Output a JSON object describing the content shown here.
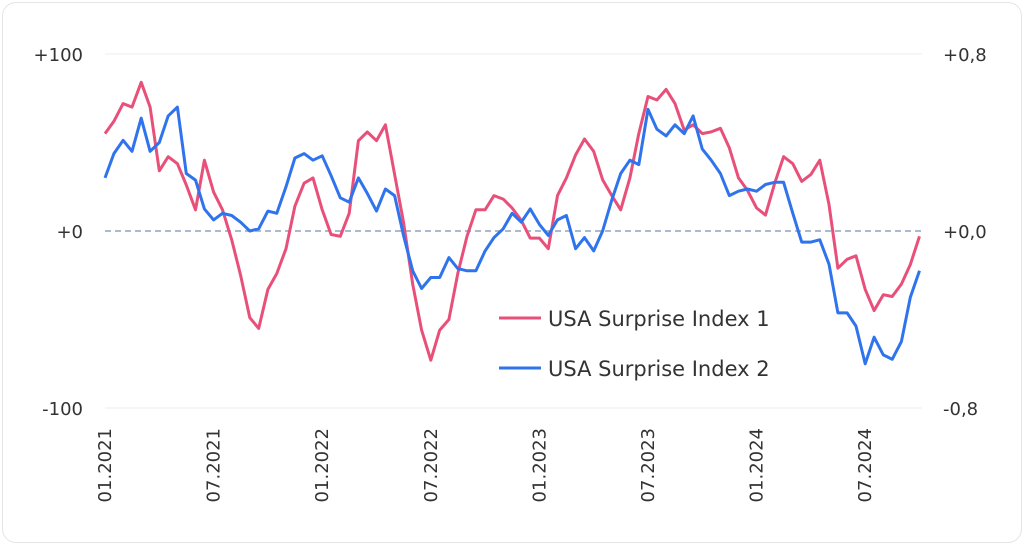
{
  "chart_data": {
    "type": "line",
    "title": "",
    "xlabel": "",
    "ylabel_left": "",
    "ylabel_right": "",
    "x_tick_labels": [
      "01.2021",
      "07.2021",
      "01.2022",
      "07.2022",
      "01.2023",
      "07.2023",
      "01.2024",
      "07.2024"
    ],
    "y_left_tick_labels": [
      "+100",
      "+0",
      "-100"
    ],
    "y_right_tick_labels": [
      "+0,8",
      "+0,0",
      "-0,8"
    ],
    "ylim_left": [
      -100,
      100
    ],
    "ylim_right": [
      -0.8,
      0.8
    ],
    "zero_line": "dashed",
    "grid": "horizontal",
    "legend_position": "bottom-center",
    "x": [
      "2021-01-01",
      "2021-01-16",
      "2021-02-01",
      "2021-02-16",
      "2021-03-01",
      "2021-03-16",
      "2021-04-01",
      "2021-04-16",
      "2021-05-01",
      "2021-05-16",
      "2021-06-01",
      "2021-06-16",
      "2021-07-01",
      "2021-07-16",
      "2021-08-01",
      "2021-08-16",
      "2021-09-01",
      "2021-09-16",
      "2021-10-01",
      "2021-10-16",
      "2021-11-01",
      "2021-11-16",
      "2021-12-01",
      "2021-12-16",
      "2022-01-01",
      "2022-01-16",
      "2022-02-01",
      "2022-02-16",
      "2022-03-01",
      "2022-03-16",
      "2022-04-01",
      "2022-04-16",
      "2022-05-01",
      "2022-05-16",
      "2022-06-01",
      "2022-06-16",
      "2022-07-01",
      "2022-07-16",
      "2022-08-01",
      "2022-08-16",
      "2022-09-01",
      "2022-09-16",
      "2022-10-01",
      "2022-10-16",
      "2022-11-01",
      "2022-11-16",
      "2022-12-01",
      "2022-12-16",
      "2023-01-01",
      "2023-01-16",
      "2023-02-01",
      "2023-02-16",
      "2023-03-01",
      "2023-03-16",
      "2023-04-01",
      "2023-04-16",
      "2023-05-01",
      "2023-05-16",
      "2023-06-01",
      "2023-06-16",
      "2023-07-01",
      "2023-07-16",
      "2023-08-01",
      "2023-08-16",
      "2023-09-01",
      "2023-09-16",
      "2023-10-01",
      "2023-10-16",
      "2023-11-01",
      "2023-11-16",
      "2023-12-01",
      "2023-12-16",
      "2024-01-01",
      "2024-01-16",
      "2024-02-01",
      "2024-02-16",
      "2024-03-01",
      "2024-03-16",
      "2024-04-01",
      "2024-04-16",
      "2024-05-01",
      "2024-05-16",
      "2024-06-01",
      "2024-06-16",
      "2024-07-01",
      "2024-07-16",
      "2024-08-01",
      "2024-08-16",
      "2024-09-01",
      "2024-09-16",
      "2024-10-01"
    ],
    "series": [
      {
        "name": "USA Surprise Index 1",
        "axis": "left",
        "color": "#e8507a",
        "values": [
          55,
          62,
          72,
          70,
          84,
          70,
          34,
          42,
          38,
          26,
          12,
          40,
          22,
          12,
          -5,
          -25,
          -49,
          -55,
          -33,
          -24,
          -10,
          14,
          27,
          30,
          12,
          -2,
          -3,
          10,
          51,
          56,
          51,
          60,
          32,
          5,
          -30,
          -56,
          -73,
          -56,
          -50,
          -24,
          -3,
          12,
          12,
          20,
          18,
          13,
          6,
          -4,
          -4,
          -10,
          20,
          30,
          43,
          52,
          45,
          29,
          20,
          12,
          30,
          55,
          76,
          74,
          80,
          72,
          57,
          60,
          55,
          56,
          58,
          47,
          30,
          23,
          13,
          9,
          27,
          42,
          38,
          28,
          32,
          40,
          15,
          -21,
          -16,
          -14,
          -33,
          -45,
          -36,
          -37,
          -30,
          -19,
          -3
        ]
      },
      {
        "name": "USA Surprise Index 2",
        "axis": "right",
        "color": "#2f74ec",
        "values": [
          0.24,
          0.35,
          0.41,
          0.36,
          0.51,
          0.36,
          0.4,
          0.52,
          0.56,
          0.26,
          0.23,
          0.1,
          0.05,
          0.08,
          0.07,
          0.04,
          0.0,
          0.01,
          0.09,
          0.08,
          0.2,
          0.33,
          0.35,
          0.32,
          0.34,
          0.25,
          0.15,
          0.13,
          0.24,
          0.17,
          0.09,
          0.19,
          0.16,
          -0.02,
          -0.18,
          -0.26,
          -0.21,
          -0.21,
          -0.12,
          -0.17,
          -0.18,
          -0.18,
          -0.09,
          -0.03,
          0.01,
          0.08,
          0.04,
          0.1,
          0.03,
          -0.02,
          0.05,
          0.07,
          -0.08,
          -0.03,
          -0.09,
          0.0,
          0.14,
          0.26,
          0.32,
          0.3,
          0.55,
          0.46,
          0.43,
          0.48,
          0.44,
          0.52,
          0.37,
          0.32,
          0.26,
          0.16,
          0.18,
          0.19,
          0.18,
          0.21,
          0.22,
          0.22,
          0.08,
          -0.05,
          -0.05,
          -0.04,
          -0.15,
          -0.37,
          -0.37,
          -0.43,
          -0.6,
          -0.48,
          -0.56,
          -0.58,
          -0.5,
          -0.3,
          -0.18
        ]
      }
    ]
  }
}
